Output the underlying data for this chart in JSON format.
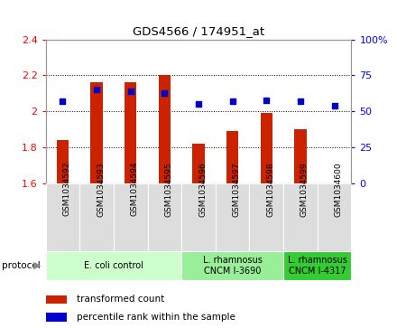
{
  "title": "GDS4566 / 174951_at",
  "samples": [
    "GSM1034592",
    "GSM1034593",
    "GSM1034594",
    "GSM1034595",
    "GSM1034596",
    "GSM1034597",
    "GSM1034598",
    "GSM1034599",
    "GSM1034600"
  ],
  "transformed_count": [
    1.84,
    2.16,
    2.16,
    2.2,
    1.82,
    1.89,
    1.99,
    1.9,
    1.6
  ],
  "percentile_rank": [
    57,
    65,
    64,
    63,
    55,
    57,
    58,
    57,
    54
  ],
  "bar_bottom": 1.6,
  "ylim_left": [
    1.6,
    2.4
  ],
  "ylim_right": [
    0,
    100
  ],
  "yticks_left": [
    1.6,
    1.8,
    2.0,
    2.2,
    2.4
  ],
  "yticks_right": [
    0,
    25,
    50,
    75,
    100
  ],
  "bar_color": "#cc2200",
  "dot_color": "#0000cc",
  "protocol_groups": [
    {
      "label": "E. coli control",
      "start": 0,
      "end": 4,
      "color": "#ccffcc"
    },
    {
      "label": "L. rhamnosus\nCNCM I-3690",
      "start": 4,
      "end": 7,
      "color": "#99ee99"
    },
    {
      "label": "L. rhamnosus\nCNCM I-4317",
      "start": 7,
      "end": 9,
      "color": "#33cc33"
    }
  ],
  "legend_bar_label": "transformed count",
  "legend_dot_label": "percentile rank within the sample",
  "protocol_label": "protocol",
  "sample_box_color": "#dddddd",
  "spine_color": "#999999"
}
